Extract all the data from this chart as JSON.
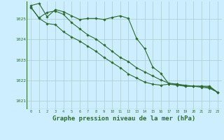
{
  "background_color": "#cceeff",
  "grid_color": "#aacccc",
  "line_color": "#2d6b2d",
  "marker_color": "#2d6b2d",
  "xlabel": "Graphe pression niveau de la mer (hPa)",
  "xlabel_fontsize": 6.5,
  "ylim": [
    1020.6,
    1025.85
  ],
  "xlim": [
    -0.5,
    23.5
  ],
  "yticks": [
    1021,
    1022,
    1023,
    1024,
    1025
  ],
  "xticks": [
    0,
    1,
    2,
    3,
    4,
    5,
    6,
    7,
    8,
    9,
    10,
    11,
    12,
    13,
    14,
    15,
    16,
    17,
    18,
    19,
    20,
    21,
    22,
    23
  ],
  "series": [
    [
      1025.65,
      1025.75,
      1025.1,
      1025.45,
      1025.35,
      1025.15,
      1024.97,
      1025.02,
      1025.02,
      1024.97,
      1025.07,
      1025.15,
      1025.02,
      1024.05,
      1023.55,
      1022.65,
      1022.35,
      1021.82,
      1021.82,
      1021.72,
      1021.72,
      1021.72,
      1021.72,
      1021.42
    ],
    [
      1025.55,
      1025.05,
      1025.32,
      1025.38,
      1025.22,
      1024.82,
      1024.52,
      1024.22,
      1024.02,
      1023.72,
      1023.42,
      1023.12,
      1022.92,
      1022.62,
      1022.42,
      1022.22,
      1022.02,
      1021.87,
      1021.82,
      1021.77,
      1021.72,
      1021.72,
      1021.67,
      1021.42
    ],
    [
      1025.58,
      1025.02,
      1024.77,
      1024.72,
      1024.37,
      1024.12,
      1023.92,
      1023.67,
      1023.42,
      1023.12,
      1022.87,
      1022.62,
      1022.32,
      1022.12,
      1021.92,
      1021.82,
      1021.77,
      1021.82,
      1021.77,
      1021.72,
      1021.72,
      1021.67,
      1021.62,
      1021.42
    ]
  ]
}
